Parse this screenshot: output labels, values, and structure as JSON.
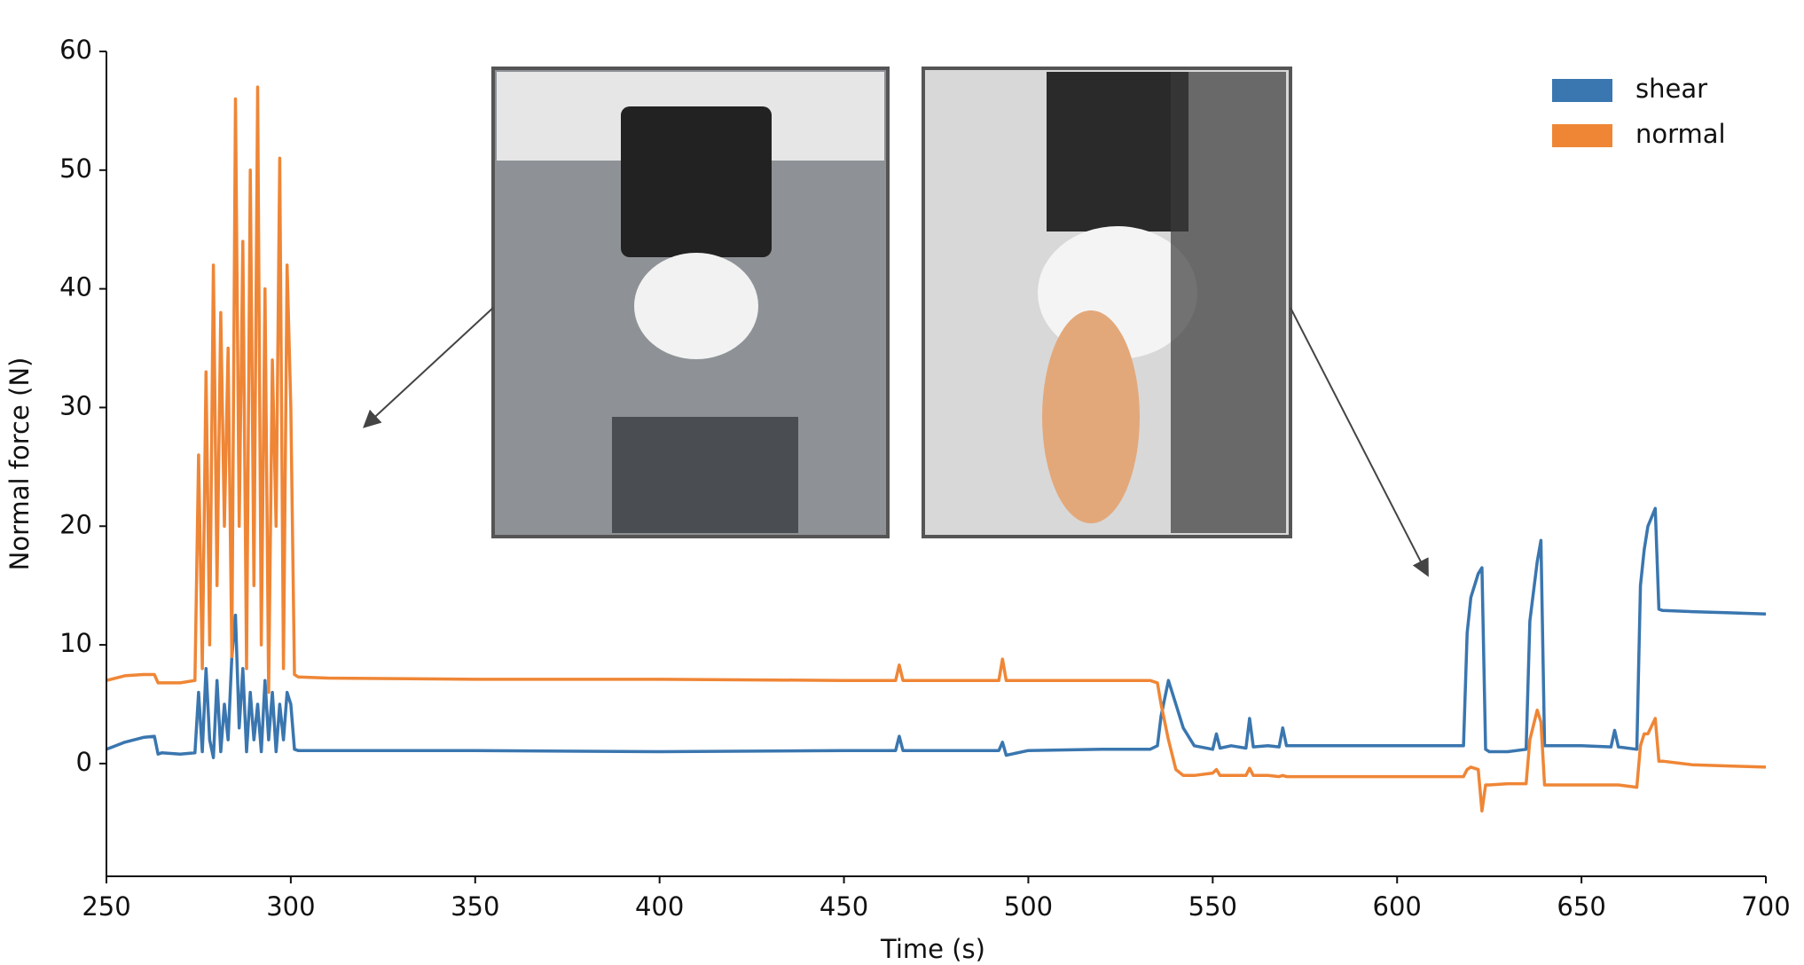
{
  "chart_data": {
    "type": "line",
    "x_label": "Time (s)",
    "y_label": "Normal force (N)",
    "xlim": [
      250,
      700
    ],
    "ylim": [
      -9.5,
      60
    ],
    "xticks": [
      250,
      300,
      350,
      400,
      450,
      500,
      550,
      600,
      650,
      700
    ],
    "yticks": [
      0,
      10,
      20,
      30,
      40,
      50,
      60
    ],
    "legend": "upper right",
    "x": [
      250,
      255,
      260,
      263,
      264,
      265,
      270,
      274,
      275,
      276,
      277,
      278,
      279,
      280,
      281,
      282,
      283,
      284,
      285,
      286,
      287,
      288,
      289,
      290,
      291,
      292,
      293,
      294,
      295,
      296,
      297,
      298,
      299,
      300,
      301,
      302,
      310,
      350,
      400,
      450,
      464,
      465,
      466,
      480,
      492,
      493,
      494,
      500,
      520,
      533,
      535,
      536,
      538,
      540,
      542,
      545,
      550,
      551,
      552,
      555,
      559,
      560,
      561,
      565,
      568,
      569,
      570,
      580,
      600,
      618,
      619,
      620,
      622,
      623,
      624,
      625,
      630,
      635,
      636,
      638,
      639,
      640,
      641,
      650,
      658,
      659,
      660,
      665,
      666,
      667,
      668,
      670,
      671,
      672,
      680,
      690,
      700
    ],
    "series": [
      {
        "name": "shear",
        "color": "#3a76af",
        "values": [
          1.2,
          1.8,
          2.2,
          2.3,
          0.8,
          0.9,
          0.8,
          0.9,
          6,
          1,
          8,
          2,
          0.5,
          7,
          1,
          5,
          2,
          9,
          12.5,
          3,
          8,
          1,
          6,
          2,
          5,
          1,
          7,
          2,
          6,
          1,
          5,
          2,
          6,
          5,
          1.2,
          1.1,
          1.1,
          1.1,
          1.0,
          1.1,
          1.1,
          2.3,
          1.1,
          1.1,
          1.1,
          1.8,
          0.7,
          1.1,
          1.2,
          1.2,
          1.5,
          4,
          7,
          5,
          3,
          1.5,
          1.2,
          2.5,
          1.3,
          1.5,
          1.3,
          3.8,
          1.4,
          1.5,
          1.4,
          3,
          1.5,
          1.5,
          1.5,
          1.5,
          11,
          14,
          16,
          16.5,
          1.2,
          1,
          1,
          1.2,
          12,
          17,
          18.8,
          1.5,
          1.5,
          1.5,
          1.4,
          2.8,
          1.4,
          1.2,
          15,
          18,
          20,
          21.5,
          13,
          12.9,
          12.8,
          12.7,
          12.6
        ]
      },
      {
        "name": "normal",
        "color": "#ef8636",
        "values": [
          7,
          7.4,
          7.5,
          7.5,
          6.8,
          6.8,
          6.8,
          7,
          26,
          8,
          33,
          10,
          42,
          15,
          38,
          20,
          35,
          9,
          56,
          20,
          44,
          8,
          50,
          15,
          57,
          10,
          40,
          6,
          34,
          20,
          51,
          8,
          42,
          30,
          7.5,
          7.3,
          7.2,
          7.1,
          7.1,
          7,
          7,
          8.3,
          7,
          7,
          7,
          8.8,
          7,
          7,
          7,
          7,
          6.8,
          5,
          2,
          -0.5,
          -1,
          -1,
          -0.8,
          -0.5,
          -1,
          -1,
          -1,
          -0.4,
          -1,
          -1,
          -1.1,
          -1,
          -1.1,
          -1.1,
          -1.1,
          -1.1,
          -0.5,
          -0.3,
          -0.5,
          -4,
          -1.8,
          -1.8,
          -1.7,
          -1.7,
          2,
          4.5,
          3.5,
          -1.8,
          -1.8,
          -1.8,
          -1.8,
          -1.8,
          -1.8,
          -2,
          1.5,
          2.5,
          2.5,
          3.8,
          0.2,
          0.2,
          -0.1,
          -0.2,
          -0.3
        ]
      }
    ]
  }
}
